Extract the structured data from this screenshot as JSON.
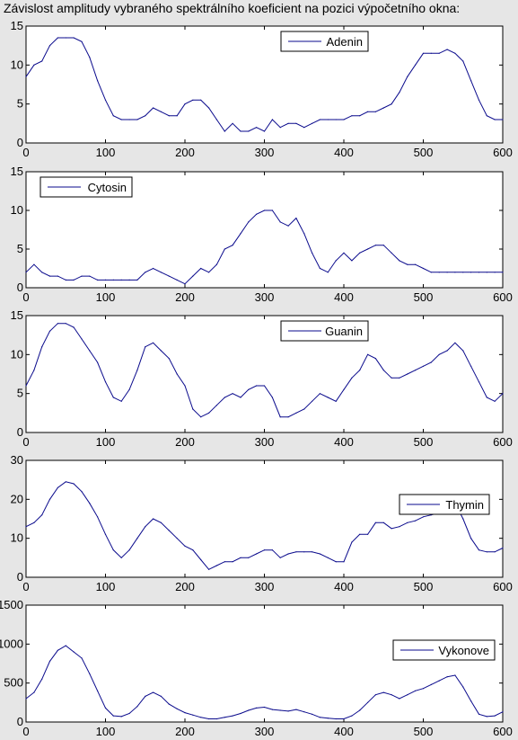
{
  "title": "Závislost amplitudy vybraného spektrálního koeficient na pozici výpočetního okna:",
  "colors": {
    "figure_bg": "#e6e6e6",
    "axes_bg": "#ffffff",
    "line": "#0a0a8c",
    "axis": "#000000"
  },
  "chart_data": [
    {
      "type": "line",
      "legend": "top-right",
      "xlim": [
        0,
        600
      ],
      "ylim": [
        0,
        15
      ],
      "xticks": [
        0,
        100,
        200,
        300,
        400,
        500,
        600
      ],
      "yticks": [
        0,
        5,
        10,
        15
      ],
      "series": [
        {
          "name": "Adenin",
          "x": [
            0,
            10,
            20,
            30,
            40,
            50,
            60,
            70,
            80,
            90,
            100,
            110,
            120,
            130,
            140,
            150,
            160,
            170,
            180,
            190,
            200,
            210,
            220,
            230,
            240,
            250,
            260,
            270,
            280,
            290,
            300,
            310,
            320,
            330,
            340,
            350,
            360,
            370,
            380,
            390,
            400,
            410,
            420,
            430,
            440,
            450,
            460,
            470,
            480,
            490,
            500,
            510,
            520,
            530,
            540,
            550,
            560,
            570,
            580,
            590,
            600
          ],
          "y": [
            8.5,
            10,
            10.5,
            12.5,
            13.5,
            13.5,
            13.5,
            13,
            11,
            8,
            5.5,
            3.5,
            3,
            3,
            3,
            3.5,
            4.5,
            4,
            3.5,
            3.5,
            5,
            5.5,
            5.5,
            4.5,
            3,
            1.5,
            2.5,
            1.5,
            1.5,
            2,
            1.5,
            3,
            2,
            2.5,
            2.5,
            2,
            2.5,
            3,
            3,
            3,
            3,
            3.5,
            3.5,
            4,
            4,
            4.5,
            5,
            6.5,
            8.5,
            10,
            11.5,
            11.5,
            11.5,
            12,
            11.5,
            10.5,
            8,
            5.5,
            3.5,
            3,
            3
          ]
        }
      ]
    },
    {
      "type": "line",
      "legend": "top-left",
      "xlim": [
        0,
        600
      ],
      "ylim": [
        0,
        15
      ],
      "xticks": [
        0,
        100,
        200,
        300,
        400,
        500,
        600
      ],
      "yticks": [
        0,
        5,
        10,
        15
      ],
      "series": [
        {
          "name": "Cytosin",
          "x": [
            0,
            10,
            20,
            30,
            40,
            50,
            60,
            70,
            80,
            90,
            100,
            110,
            120,
            130,
            140,
            150,
            160,
            170,
            180,
            190,
            200,
            210,
            220,
            230,
            240,
            250,
            260,
            270,
            280,
            290,
            300,
            310,
            320,
            330,
            340,
            350,
            360,
            370,
            380,
            390,
            400,
            410,
            420,
            430,
            440,
            450,
            460,
            470,
            480,
            490,
            500,
            510,
            520,
            530,
            540,
            550,
            560,
            570,
            580,
            590,
            600
          ],
          "y": [
            2,
            3,
            2,
            1.5,
            1.5,
            1,
            1,
            1.5,
            1.5,
            1,
            1,
            1,
            1,
            1,
            1,
            2,
            2.5,
            2,
            1.5,
            1,
            0.5,
            1.5,
            2.5,
            2,
            3,
            5,
            5.5,
            7,
            8.5,
            9.5,
            10,
            10,
            8.5,
            8,
            9,
            7,
            4.5,
            2.5,
            2,
            3.5,
            4.5,
            3.5,
            4.5,
            5,
            5.5,
            5.5,
            4.5,
            3.5,
            3,
            3,
            2.5,
            2,
            2,
            2,
            2,
            2,
            2,
            2,
            2,
            2,
            2
          ]
        }
      ]
    },
    {
      "type": "line",
      "legend": "top-right",
      "xlim": [
        0,
        600
      ],
      "ylim": [
        0,
        15
      ],
      "xticks": [
        0,
        100,
        200,
        300,
        400,
        500,
        600
      ],
      "yticks": [
        0,
        5,
        10,
        15
      ],
      "series": [
        {
          "name": "Guanin",
          "x": [
            0,
            10,
            20,
            30,
            40,
            50,
            60,
            70,
            80,
            90,
            100,
            110,
            120,
            130,
            140,
            150,
            160,
            170,
            180,
            190,
            200,
            210,
            220,
            230,
            240,
            250,
            260,
            270,
            280,
            290,
            300,
            310,
            320,
            330,
            340,
            350,
            360,
            370,
            380,
            390,
            400,
            410,
            420,
            430,
            440,
            450,
            460,
            470,
            480,
            490,
            500,
            510,
            520,
            530,
            540,
            550,
            560,
            570,
            580,
            590,
            600
          ],
          "y": [
            6,
            8,
            11,
            13,
            14,
            14,
            13.5,
            12,
            10.5,
            9,
            6.5,
            4.5,
            4,
            5.5,
            8,
            11,
            11.5,
            10.5,
            9.5,
            7.5,
            6,
            3,
            2,
            2.5,
            3.5,
            4.5,
            5,
            4.5,
            5.5,
            6,
            6,
            4.5,
            2,
            2,
            2.5,
            3,
            4,
            5,
            4.5,
            4,
            5.5,
            7,
            8,
            10,
            9.5,
            8,
            7,
            7,
            7.5,
            8,
            8.5,
            9,
            10,
            10.5,
            11.5,
            10.5,
            8.5,
            6.5,
            4.5,
            4,
            5
          ]
        }
      ]
    },
    {
      "type": "line",
      "legend": "top-right",
      "xlim": [
        0,
        600
      ],
      "ylim": [
        0,
        30
      ],
      "xticks": [
        0,
        100,
        200,
        300,
        400,
        500,
        600
      ],
      "yticks": [
        0,
        10,
        20,
        30
      ],
      "series": [
        {
          "name": "Thymin",
          "x": [
            0,
            10,
            20,
            30,
            40,
            50,
            60,
            70,
            80,
            90,
            100,
            110,
            120,
            130,
            140,
            150,
            160,
            170,
            180,
            190,
            200,
            210,
            220,
            230,
            240,
            250,
            260,
            270,
            280,
            290,
            300,
            310,
            320,
            330,
            340,
            350,
            360,
            370,
            380,
            390,
            400,
            410,
            420,
            430,
            440,
            450,
            460,
            470,
            480,
            490,
            500,
            510,
            520,
            530,
            540,
            550,
            560,
            570,
            580,
            590,
            600
          ],
          "y": [
            13,
            14,
            16,
            20,
            23,
            24.5,
            24,
            22,
            19,
            15.5,
            11,
            7,
            5,
            7,
            10,
            13,
            15,
            14,
            12,
            10,
            8,
            7,
            4.5,
            2,
            3,
            4,
            4,
            5,
            5,
            6,
            7,
            7,
            5,
            6,
            6.5,
            6.5,
            6.5,
            6,
            5,
            4,
            4,
            9,
            11,
            11,
            14,
            14,
            12.5,
            13,
            14,
            14.5,
            15.5,
            16,
            16.5,
            18,
            19,
            15,
            10,
            7,
            6.5,
            6.5,
            7.5
          ]
        }
      ]
    },
    {
      "type": "line",
      "legend": "top-right",
      "xlim": [
        0,
        600
      ],
      "ylim": [
        0,
        1500
      ],
      "xticks": [
        0,
        100,
        200,
        300,
        400,
        500,
        600
      ],
      "yticks": [
        0,
        500,
        1000,
        1500
      ],
      "series": [
        {
          "name": "Vykonove",
          "x": [
            0,
            10,
            20,
            30,
            40,
            50,
            60,
            70,
            80,
            90,
            100,
            110,
            120,
            130,
            140,
            150,
            160,
            170,
            180,
            190,
            200,
            210,
            220,
            230,
            240,
            250,
            260,
            270,
            280,
            290,
            300,
            310,
            320,
            330,
            340,
            350,
            360,
            370,
            380,
            390,
            400,
            410,
            420,
            430,
            440,
            450,
            460,
            470,
            480,
            490,
            500,
            510,
            520,
            530,
            540,
            550,
            560,
            570,
            580,
            590,
            600
          ],
          "y": [
            300,
            380,
            550,
            780,
            920,
            980,
            900,
            820,
            620,
            400,
            180,
            80,
            70,
            110,
            200,
            330,
            380,
            330,
            230,
            170,
            120,
            90,
            60,
            40,
            40,
            60,
            80,
            110,
            150,
            180,
            190,
            160,
            150,
            140,
            160,
            130,
            100,
            60,
            50,
            40,
            40,
            80,
            150,
            250,
            350,
            380,
            350,
            300,
            350,
            400,
            430,
            480,
            530,
            580,
            600,
            450,
            270,
            100,
            70,
            80,
            130
          ]
        }
      ]
    }
  ]
}
